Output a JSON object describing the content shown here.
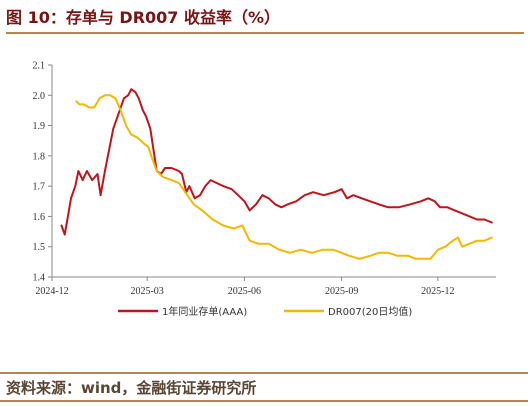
{
  "title": "图 10：存单与 DR007 收益率（%）",
  "source": "资料来源：wind，金融街证券研究所",
  "colors": {
    "series1": "#c0141c",
    "series2": "#f5b800",
    "accent": "#b4864a"
  },
  "chart_data": {
    "type": "line",
    "ylim": [
      1.4,
      2.1
    ],
    "yticks": [
      "1.4",
      "1.5",
      "1.6",
      "1.7",
      "1.8",
      "1.9",
      "2.0",
      "2.1"
    ],
    "xlim": [
      "2024-12-01",
      "2026-01-25"
    ],
    "xticks": [
      "2024-12",
      "2025-03",
      "2025-06",
      "2025-09",
      "2025-12"
    ],
    "grid": false,
    "legend": "bottom",
    "series": [
      {
        "name": "1年同业存单(AAA)",
        "color": "#c0141c",
        "points": [
          [
            "2024-12-10",
            1.57
          ],
          [
            "2024-12-13",
            1.54
          ],
          [
            "2024-12-16",
            1.6
          ],
          [
            "2024-12-19",
            1.66
          ],
          [
            "2024-12-23",
            1.7
          ],
          [
            "2024-12-26",
            1.75
          ],
          [
            "2024-12-30",
            1.72
          ],
          [
            "2025-01-03",
            1.75
          ],
          [
            "2025-01-08",
            1.72
          ],
          [
            "2025-01-13",
            1.74
          ],
          [
            "2025-01-16",
            1.67
          ],
          [
            "2025-01-20",
            1.75
          ],
          [
            "2025-01-24",
            1.82
          ],
          [
            "2025-01-28",
            1.89
          ],
          [
            "2025-02-03",
            1.95
          ],
          [
            "2025-02-07",
            1.99
          ],
          [
            "2025-02-11",
            2.0
          ],
          [
            "2025-02-14",
            2.02
          ],
          [
            "2025-02-18",
            2.01
          ],
          [
            "2025-02-21",
            1.99
          ],
          [
            "2025-02-25",
            1.95
          ],
          [
            "2025-02-28",
            1.93
          ],
          [
            "2025-03-04",
            1.89
          ],
          [
            "2025-03-07",
            1.82
          ],
          [
            "2025-03-10",
            1.75
          ],
          [
            "2025-03-14",
            1.74
          ],
          [
            "2025-03-18",
            1.76
          ],
          [
            "2025-03-24",
            1.76
          ],
          [
            "2025-03-31",
            1.75
          ],
          [
            "2025-04-03",
            1.74
          ],
          [
            "2025-04-07",
            1.68
          ],
          [
            "2025-04-10",
            1.7
          ],
          [
            "2025-04-15",
            1.66
          ],
          [
            "2025-04-20",
            1.67
          ],
          [
            "2025-04-25",
            1.7
          ],
          [
            "2025-04-30",
            1.72
          ],
          [
            "2025-05-06",
            1.71
          ],
          [
            "2025-05-12",
            1.7
          ],
          [
            "2025-05-20",
            1.69
          ],
          [
            "2025-05-26",
            1.67
          ],
          [
            "2025-06-01",
            1.65
          ],
          [
            "2025-06-06",
            1.62
          ],
          [
            "2025-06-12",
            1.64
          ],
          [
            "2025-06-18",
            1.67
          ],
          [
            "2025-06-24",
            1.66
          ],
          [
            "2025-06-30",
            1.64
          ],
          [
            "2025-07-06",
            1.63
          ],
          [
            "2025-07-12",
            1.64
          ],
          [
            "2025-07-20",
            1.65
          ],
          [
            "2025-07-28",
            1.67
          ],
          [
            "2025-08-05",
            1.68
          ],
          [
            "2025-08-15",
            1.67
          ],
          [
            "2025-08-25",
            1.68
          ],
          [
            "2025-09-01",
            1.69
          ],
          [
            "2025-09-06",
            1.66
          ],
          [
            "2025-09-12",
            1.67
          ],
          [
            "2025-09-20",
            1.66
          ],
          [
            "2025-09-28",
            1.65
          ],
          [
            "2025-10-06",
            1.64
          ],
          [
            "2025-10-15",
            1.63
          ],
          [
            "2025-10-25",
            1.63
          ],
          [
            "2025-11-05",
            1.64
          ],
          [
            "2025-11-15",
            1.65
          ],
          [
            "2025-11-22",
            1.66
          ],
          [
            "2025-11-28",
            1.65
          ],
          [
            "2025-12-03",
            1.63
          ],
          [
            "2025-12-10",
            1.63
          ],
          [
            "2025-12-17",
            1.62
          ],
          [
            "2025-12-24",
            1.61
          ],
          [
            "2025-12-31",
            1.6
          ],
          [
            "2026-01-07",
            1.59
          ],
          [
            "2026-01-14",
            1.59
          ],
          [
            "2026-01-21",
            1.58
          ]
        ]
      },
      {
        "name": "DR007(20日均值)",
        "color": "#f5b800",
        "points": [
          [
            "2024-12-24",
            1.98
          ],
          [
            "2024-12-27",
            1.97
          ],
          [
            "2024-12-31",
            1.97
          ],
          [
            "2025-01-05",
            1.96
          ],
          [
            "2025-01-10",
            1.96
          ],
          [
            "2025-01-15",
            1.99
          ],
          [
            "2025-01-20",
            2.0
          ],
          [
            "2025-01-25",
            2.0
          ],
          [
            "2025-01-30",
            1.99
          ],
          [
            "2025-02-04",
            1.95
          ],
          [
            "2025-02-09",
            1.9
          ],
          [
            "2025-02-14",
            1.87
          ],
          [
            "2025-02-20",
            1.86
          ],
          [
            "2025-02-26",
            1.84
          ],
          [
            "2025-03-02",
            1.83
          ],
          [
            "2025-03-06",
            1.79
          ],
          [
            "2025-03-10",
            1.75
          ],
          [
            "2025-03-16",
            1.73
          ],
          [
            "2025-03-24",
            1.72
          ],
          [
            "2025-03-31",
            1.71
          ],
          [
            "2025-04-06",
            1.68
          ],
          [
            "2025-04-14",
            1.64
          ],
          [
            "2025-04-22",
            1.62
          ],
          [
            "2025-05-02",
            1.59
          ],
          [
            "2025-05-12",
            1.57
          ],
          [
            "2025-05-22",
            1.56
          ],
          [
            "2025-05-30",
            1.57
          ],
          [
            "2025-06-06",
            1.52
          ],
          [
            "2025-06-14",
            1.51
          ],
          [
            "2025-06-24",
            1.51
          ],
          [
            "2025-07-04",
            1.49
          ],
          [
            "2025-07-14",
            1.48
          ],
          [
            "2025-07-24",
            1.49
          ],
          [
            "2025-08-04",
            1.48
          ],
          [
            "2025-08-14",
            1.49
          ],
          [
            "2025-08-24",
            1.49
          ],
          [
            "2025-09-01",
            1.48
          ],
          [
            "2025-09-08",
            1.47
          ],
          [
            "2025-09-18",
            1.46
          ],
          [
            "2025-09-28",
            1.47
          ],
          [
            "2025-10-06",
            1.48
          ],
          [
            "2025-10-15",
            1.48
          ],
          [
            "2025-10-24",
            1.47
          ],
          [
            "2025-11-03",
            1.47
          ],
          [
            "2025-11-10",
            1.46
          ],
          [
            "2025-11-17",
            1.46
          ],
          [
            "2025-11-24",
            1.46
          ],
          [
            "2025-12-01",
            1.49
          ],
          [
            "2025-12-08",
            1.5
          ],
          [
            "2025-12-15",
            1.52
          ],
          [
            "2025-12-20",
            1.53
          ],
          [
            "2025-12-24",
            1.5
          ],
          [
            "2025-12-31",
            1.51
          ],
          [
            "2026-01-07",
            1.52
          ],
          [
            "2026-01-14",
            1.52
          ],
          [
            "2026-01-21",
            1.53
          ]
        ]
      }
    ]
  }
}
